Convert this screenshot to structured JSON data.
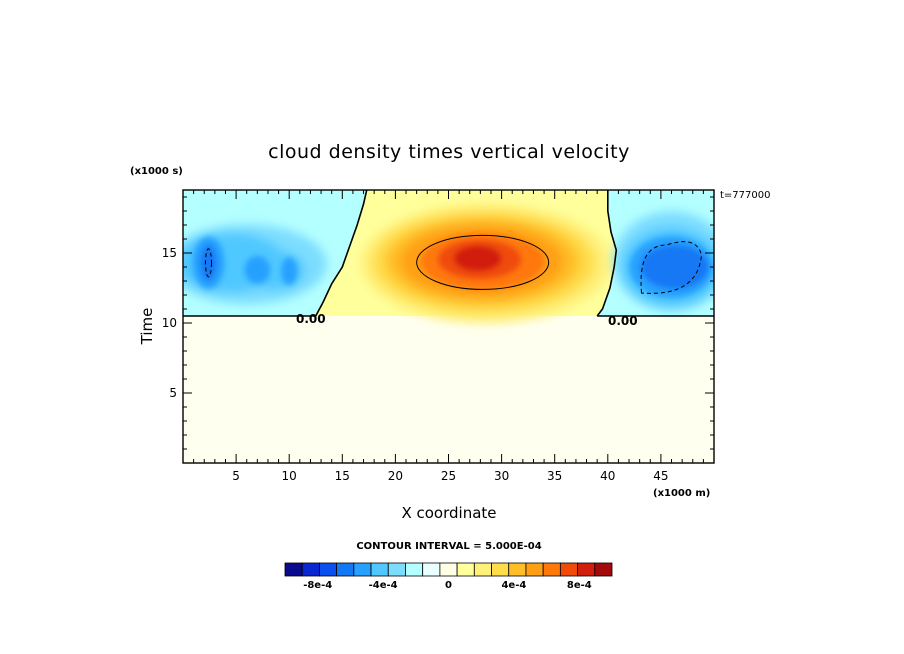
{
  "chart_data": {
    "type": "heatmap",
    "title": "cloud density times vertical velocity",
    "xlabel": "X coordinate",
    "ylabel": "Time",
    "x_units": "(x1000 m)",
    "y_units": "(x1000 s)",
    "time_stamp": "t=777000",
    "xlim": [
      0,
      50
    ],
    "ylim": [
      0,
      19.5
    ],
    "xticks": [
      "5",
      "10",
      "15",
      "20",
      "25",
      "30",
      "35",
      "40",
      "45"
    ],
    "xtick_values": [
      5,
      10,
      15,
      20,
      25,
      30,
      35,
      40,
      45
    ],
    "yticks": [
      "5",
      "10",
      "15"
    ],
    "ytick_values": [
      5,
      10,
      15
    ],
    "contour_interval_text": "CONTOUR INTERVAL = 5.000E-04",
    "contour_label_left": "0.00",
    "contour_label_right": "0.00",
    "zero_contour": {
      "lower_y": 10.5,
      "left_boundary": [
        [
          17.3,
          19.5
        ],
        [
          17.0,
          18.5
        ],
        [
          16.4,
          17.0
        ],
        [
          15.7,
          15.5
        ],
        [
          15.0,
          14.0
        ],
        [
          14.0,
          12.8
        ],
        [
          13.2,
          11.5
        ],
        [
          12.5,
          10.5
        ]
      ],
      "right_boundary": [
        [
          40.0,
          19.5
        ],
        [
          40.0,
          18.0
        ],
        [
          40.3,
          16.5
        ],
        [
          40.8,
          15.2
        ],
        [
          40.6,
          14.0
        ],
        [
          40.2,
          12.5
        ],
        [
          39.5,
          11.0
        ],
        [
          39.0,
          10.5
        ]
      ]
    },
    "features": [
      {
        "name": "positive-core",
        "x": 28.5,
        "y": 14.4,
        "value": 0.0011
      },
      {
        "name": "negative-left",
        "x": 2.4,
        "y": 14.3,
        "value": -0.0006
      },
      {
        "name": "negative-left-small-1",
        "x": 7.0,
        "y": 13.8,
        "value": -0.0004
      },
      {
        "name": "negative-left-small-2",
        "x": 10.0,
        "y": 13.7,
        "value": -0.0004
      },
      {
        "name": "negative-right",
        "x": 46.0,
        "y": 14.0,
        "value": -0.00055
      }
    ],
    "colorbar": {
      "tick_labels": [
        "-8e-4",
        "-4e-4",
        "0",
        "4e-4",
        "8e-4"
      ],
      "tick_values": [
        -0.0008,
        -0.0004,
        0,
        0.0004,
        0.0008
      ],
      "min": -0.001,
      "max": 0.001,
      "colors": [
        "#0a0a8c",
        "#0a28d2",
        "#0a50f0",
        "#1478f5",
        "#28a0ff",
        "#50c8ff",
        "#7dddff",
        "#b4ffff",
        "#eaffff",
        "#ffffe6",
        "#ffff9c",
        "#fff07a",
        "#ffdc4a",
        "#ffbe28",
        "#ffa014",
        "#ff780a",
        "#f04b0a",
        "#d21e0a",
        "#a50a0a"
      ]
    }
  }
}
